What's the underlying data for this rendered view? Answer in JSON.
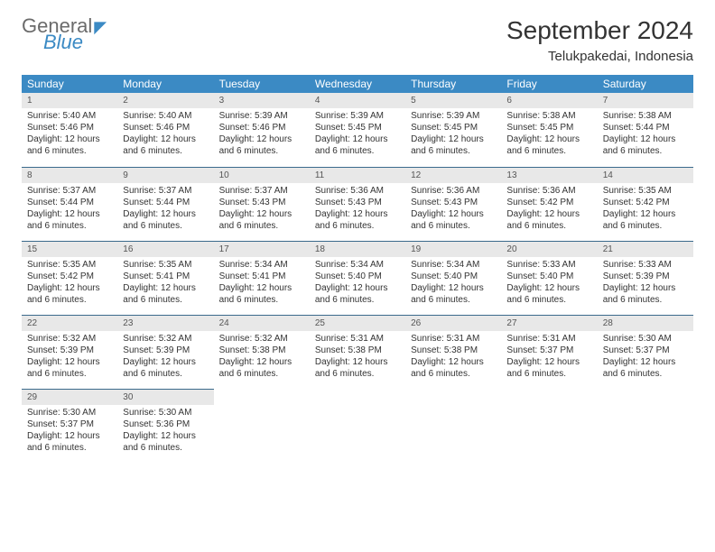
{
  "brand": {
    "general": "General",
    "blue": "Blue"
  },
  "title": "September 2024",
  "location": "Telukpakedai, Indonesia",
  "header_bg": "#3b8ac4",
  "weekdays": [
    "Sunday",
    "Monday",
    "Tuesday",
    "Wednesday",
    "Thursday",
    "Friday",
    "Saturday"
  ],
  "daylight_text": "Daylight: 12 hours and 6 minutes.",
  "days": [
    {
      "n": "1",
      "sr": "5:40 AM",
      "ss": "5:46 PM"
    },
    {
      "n": "2",
      "sr": "5:40 AM",
      "ss": "5:46 PM"
    },
    {
      "n": "3",
      "sr": "5:39 AM",
      "ss": "5:46 PM"
    },
    {
      "n": "4",
      "sr": "5:39 AM",
      "ss": "5:45 PM"
    },
    {
      "n": "5",
      "sr": "5:39 AM",
      "ss": "5:45 PM"
    },
    {
      "n": "6",
      "sr": "5:38 AM",
      "ss": "5:45 PM"
    },
    {
      "n": "7",
      "sr": "5:38 AM",
      "ss": "5:44 PM"
    },
    {
      "n": "8",
      "sr": "5:37 AM",
      "ss": "5:44 PM"
    },
    {
      "n": "9",
      "sr": "5:37 AM",
      "ss": "5:44 PM"
    },
    {
      "n": "10",
      "sr": "5:37 AM",
      "ss": "5:43 PM"
    },
    {
      "n": "11",
      "sr": "5:36 AM",
      "ss": "5:43 PM"
    },
    {
      "n": "12",
      "sr": "5:36 AM",
      "ss": "5:43 PM"
    },
    {
      "n": "13",
      "sr": "5:36 AM",
      "ss": "5:42 PM"
    },
    {
      "n": "14",
      "sr": "5:35 AM",
      "ss": "5:42 PM"
    },
    {
      "n": "15",
      "sr": "5:35 AM",
      "ss": "5:42 PM"
    },
    {
      "n": "16",
      "sr": "5:35 AM",
      "ss": "5:41 PM"
    },
    {
      "n": "17",
      "sr": "5:34 AM",
      "ss": "5:41 PM"
    },
    {
      "n": "18",
      "sr": "5:34 AM",
      "ss": "5:40 PM"
    },
    {
      "n": "19",
      "sr": "5:34 AM",
      "ss": "5:40 PM"
    },
    {
      "n": "20",
      "sr": "5:33 AM",
      "ss": "5:40 PM"
    },
    {
      "n": "21",
      "sr": "5:33 AM",
      "ss": "5:39 PM"
    },
    {
      "n": "22",
      "sr": "5:32 AM",
      "ss": "5:39 PM"
    },
    {
      "n": "23",
      "sr": "5:32 AM",
      "ss": "5:39 PM"
    },
    {
      "n": "24",
      "sr": "5:32 AM",
      "ss": "5:38 PM"
    },
    {
      "n": "25",
      "sr": "5:31 AM",
      "ss": "5:38 PM"
    },
    {
      "n": "26",
      "sr": "5:31 AM",
      "ss": "5:38 PM"
    },
    {
      "n": "27",
      "sr": "5:31 AM",
      "ss": "5:37 PM"
    },
    {
      "n": "28",
      "sr": "5:30 AM",
      "ss": "5:37 PM"
    },
    {
      "n": "29",
      "sr": "5:30 AM",
      "ss": "5:37 PM"
    },
    {
      "n": "30",
      "sr": "5:30 AM",
      "ss": "5:36 PM"
    }
  ],
  "labels": {
    "sunrise": "Sunrise:",
    "sunset": "Sunset:"
  }
}
